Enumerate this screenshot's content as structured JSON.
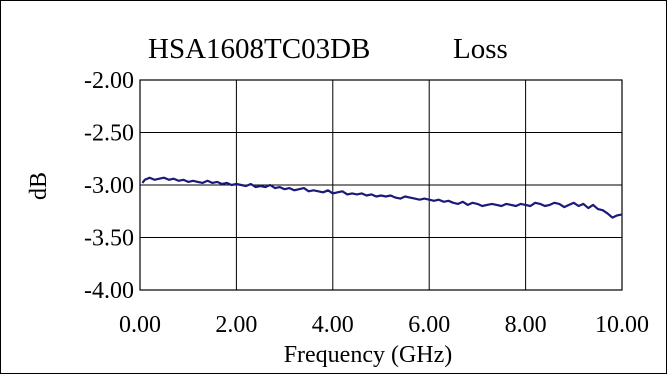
{
  "chart_data": {
    "type": "line",
    "title_part1": "HSA1608TC03DB",
    "title_part2": "Loss",
    "xlabel": "Frequency (GHz)",
    "ylabel": "dB",
    "xlim": [
      0,
      10
    ],
    "ylim": [
      -4,
      -2
    ],
    "x_ticks": [
      "0.00",
      "2.00",
      "4.00",
      "6.00",
      "8.00",
      "10.00"
    ],
    "x_tick_values": [
      0,
      2,
      4,
      6,
      8,
      10
    ],
    "y_ticks": [
      "-2.00",
      "-2.50",
      "-3.00",
      "-3.50",
      "-4.00"
    ],
    "y_tick_values": [
      -2,
      -2.5,
      -3,
      -3.5,
      -4
    ],
    "grid": true,
    "legend": "none",
    "line_color": "#1a1a7a",
    "series": [
      {
        "x": [
          0.05,
          0.1,
          0.2,
          0.3,
          0.4,
          0.5,
          0.6,
          0.7,
          0.8,
          0.9,
          1.0,
          1.1,
          1.2,
          1.3,
          1.4,
          1.5,
          1.6,
          1.7,
          1.8,
          1.9,
          2.0,
          2.1,
          2.2,
          2.3,
          2.4,
          2.5,
          2.6,
          2.7,
          2.8,
          2.9,
          3.0,
          3.1,
          3.2,
          3.3,
          3.4,
          3.5,
          3.6,
          3.7,
          3.8,
          3.9,
          4.0,
          4.1,
          4.2,
          4.3,
          4.4,
          4.5,
          4.6,
          4.7,
          4.8,
          4.9,
          5.0,
          5.1,
          5.2,
          5.3,
          5.4,
          5.5,
          5.6,
          5.7,
          5.8,
          5.9,
          6.0,
          6.1,
          6.2,
          6.3,
          6.4,
          6.5,
          6.6,
          6.7,
          6.8,
          6.9,
          7.0,
          7.1,
          7.2,
          7.3,
          7.4,
          7.5,
          7.6,
          7.7,
          7.8,
          7.9,
          8.0,
          8.1,
          8.2,
          8.3,
          8.4,
          8.5,
          8.6,
          8.7,
          8.8,
          8.9,
          9.0,
          9.1,
          9.2,
          9.3,
          9.4,
          9.5,
          9.6,
          9.7,
          9.8,
          9.9,
          10.0
        ],
        "values": [
          -2.98,
          -2.95,
          -2.93,
          -2.95,
          -2.94,
          -2.93,
          -2.95,
          -2.94,
          -2.96,
          -2.95,
          -2.97,
          -2.96,
          -2.97,
          -2.98,
          -2.96,
          -2.98,
          -2.97,
          -2.99,
          -2.98,
          -3.0,
          -2.99,
          -3.0,
          -3.01,
          -2.99,
          -3.02,
          -3.01,
          -3.02,
          -3.0,
          -3.03,
          -3.02,
          -3.04,
          -3.03,
          -3.05,
          -3.04,
          -3.03,
          -3.06,
          -3.05,
          -3.06,
          -3.07,
          -3.05,
          -3.08,
          -3.07,
          -3.06,
          -3.09,
          -3.08,
          -3.09,
          -3.08,
          -3.1,
          -3.09,
          -3.11,
          -3.1,
          -3.11,
          -3.1,
          -3.12,
          -3.13,
          -3.11,
          -3.12,
          -3.13,
          -3.14,
          -3.13,
          -3.14,
          -3.15,
          -3.14,
          -3.16,
          -3.15,
          -3.17,
          -3.18,
          -3.16,
          -3.19,
          -3.17,
          -3.18,
          -3.2,
          -3.19,
          -3.18,
          -3.19,
          -3.2,
          -3.18,
          -3.19,
          -3.2,
          -3.18,
          -3.19,
          -3.2,
          -3.17,
          -3.18,
          -3.2,
          -3.19,
          -3.17,
          -3.18,
          -3.21,
          -3.19,
          -3.17,
          -3.2,
          -3.18,
          -3.22,
          -3.19,
          -3.23,
          -3.24,
          -3.27,
          -3.31,
          -3.29,
          -3.28
        ]
      }
    ]
  }
}
